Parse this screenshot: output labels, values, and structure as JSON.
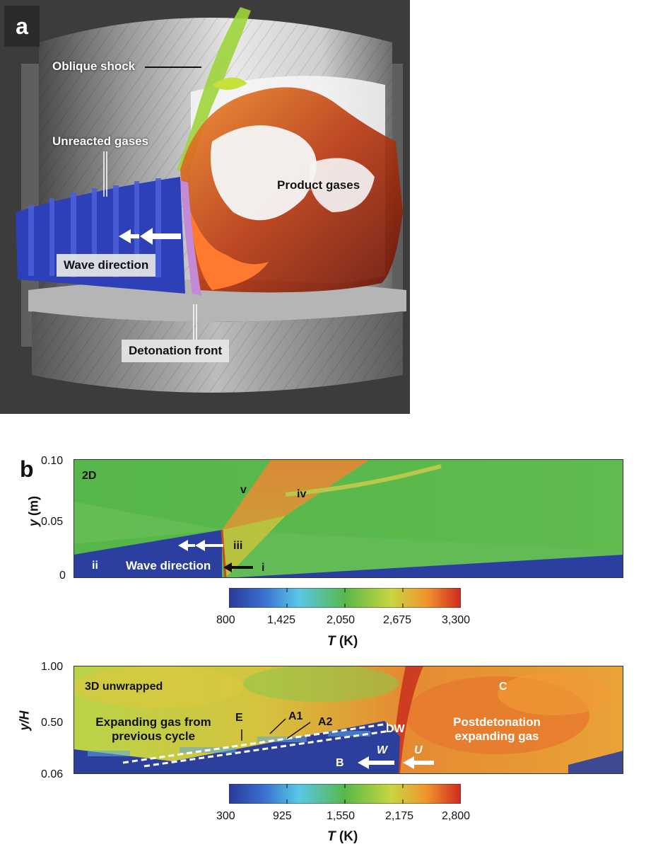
{
  "panel_a": {
    "letter": "a",
    "labels": {
      "oblique_shock": "Oblique shock",
      "unreacted_gases": "Unreacted gases",
      "product_gases": "Product gases",
      "wave_direction": "Wave direction",
      "detonation_front": "Detonation front"
    }
  },
  "panel_b": {
    "letter": "b",
    "top_plot": {
      "title": "2D",
      "ylabel_var": "y",
      "ylabel_unit": "(m)",
      "yticks": [
        "0.10",
        "0.05",
        "0"
      ],
      "labels": {
        "v": "v",
        "iv": "iv",
        "iii": "iii",
        "ii": "ii",
        "i": "i",
        "wave_direction": "Wave direction"
      },
      "colorbar": {
        "ticks": [
          "800",
          "1,425",
          "2,050",
          "2,675",
          "3,300"
        ],
        "label_var": "T",
        "label_unit": "(K)"
      }
    },
    "bottom_plot": {
      "title": "3D unwrapped",
      "ylabel_var": "y/H",
      "yticks": [
        "1.00",
        "0.50",
        "0.06"
      ],
      "labels": {
        "expanding_line1": "Expanding gas from",
        "expanding_line2": "previous cycle",
        "E": "E",
        "A1": "A1",
        "A2": "A2",
        "DW": "DW",
        "B": "B",
        "W": "W",
        "U": "U",
        "C": "C",
        "post_line1": "Postdetonation",
        "post_line2": "expanding gas"
      },
      "colorbar": {
        "ticks": [
          "300",
          "925",
          "1,550",
          "2,175",
          "2,800"
        ],
        "label_var": "T",
        "label_unit": "(K)"
      }
    }
  },
  "colors": {
    "cold_blue": "#2a3f9e",
    "green": "#4fb548",
    "orange": "#e8762a",
    "red": "#c92a1c"
  }
}
